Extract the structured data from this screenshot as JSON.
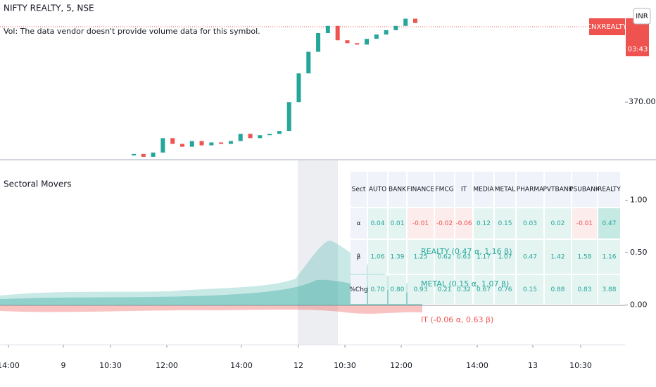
{
  "header": {
    "symbol": "NIFTY REALTY, 5, NSE",
    "volume_note": "Vol: The data vendor doesn't provide volume data for this symbol.",
    "price_tag": "CNXREALTY",
    "currency": "INR",
    "countdown": "03:43"
  },
  "price_chart": {
    "type": "line",
    "color": "#26a69a",
    "closes": [
      366.4,
      366.2,
      366.5,
      367.5,
      367.1,
      366.9,
      367.3,
      367.0,
      367.2,
      367.1,
      367.3,
      367.8,
      367.5,
      367.7,
      367.8,
      368.0,
      370.0,
      372.0,
      373.5,
      374.8,
      375.3,
      374.3,
      374.1,
      374.0,
      374.4,
      374.7,
      375.0,
      375.3,
      375.8,
      375.5
    ],
    "ylim": [
      366,
      377
    ],
    "yticks": [
      {
        "value": 370,
        "label": "370.00"
      }
    ]
  },
  "indicator": {
    "title": "Sectoral Movers",
    "ylim": [
      -0.38,
      1.38
    ],
    "yticks": [
      {
        "value": 1,
        "label": "1.00"
      },
      {
        "value": 0.5,
        "label": "0.50"
      },
      {
        "value": 0,
        "label": "0.00"
      }
    ],
    "labels": [
      "REALTY (0.47 α, 1.16 β)",
      "METAL (0.15 α, 1.07 β)",
      "IT (-0.06 α, 0.63 β)"
    ]
  },
  "table": {
    "header": [
      "Sect",
      "AUTO",
      "BANK",
      "FINANCE",
      "FMCG",
      "IT",
      "MEDIA",
      "METAL",
      "PHARMA",
      "PVTBANK",
      "PSUBANK",
      "REALTY"
    ],
    "rows": [
      [
        "α",
        "0.04",
        "0.01",
        "-0.01",
        "-0.02",
        "-0.06",
        "0.12",
        "0.15",
        "0.03",
        "0.02",
        "-0.01",
        "0.47"
      ],
      [
        "β",
        "1.06",
        "1.39",
        "1.25",
        "0.62",
        "0.63",
        "1.17",
        "1.07",
        "0.47",
        "1.42",
        "1.58",
        "1.16"
      ],
      [
        "%Chg",
        "0.70",
        "0.80",
        "0.93",
        "0.21",
        "0.32",
        "0.67",
        "0.76",
        "0.15",
        "0.88",
        "0.83",
        "3.88"
      ]
    ]
  },
  "time_axis": [
    "14:00",
    "9",
    "10:30",
    "12:00",
    "14:00",
    "12",
    "10:30",
    "12:00",
    "14:00",
    "13",
    "10:30"
  ]
}
